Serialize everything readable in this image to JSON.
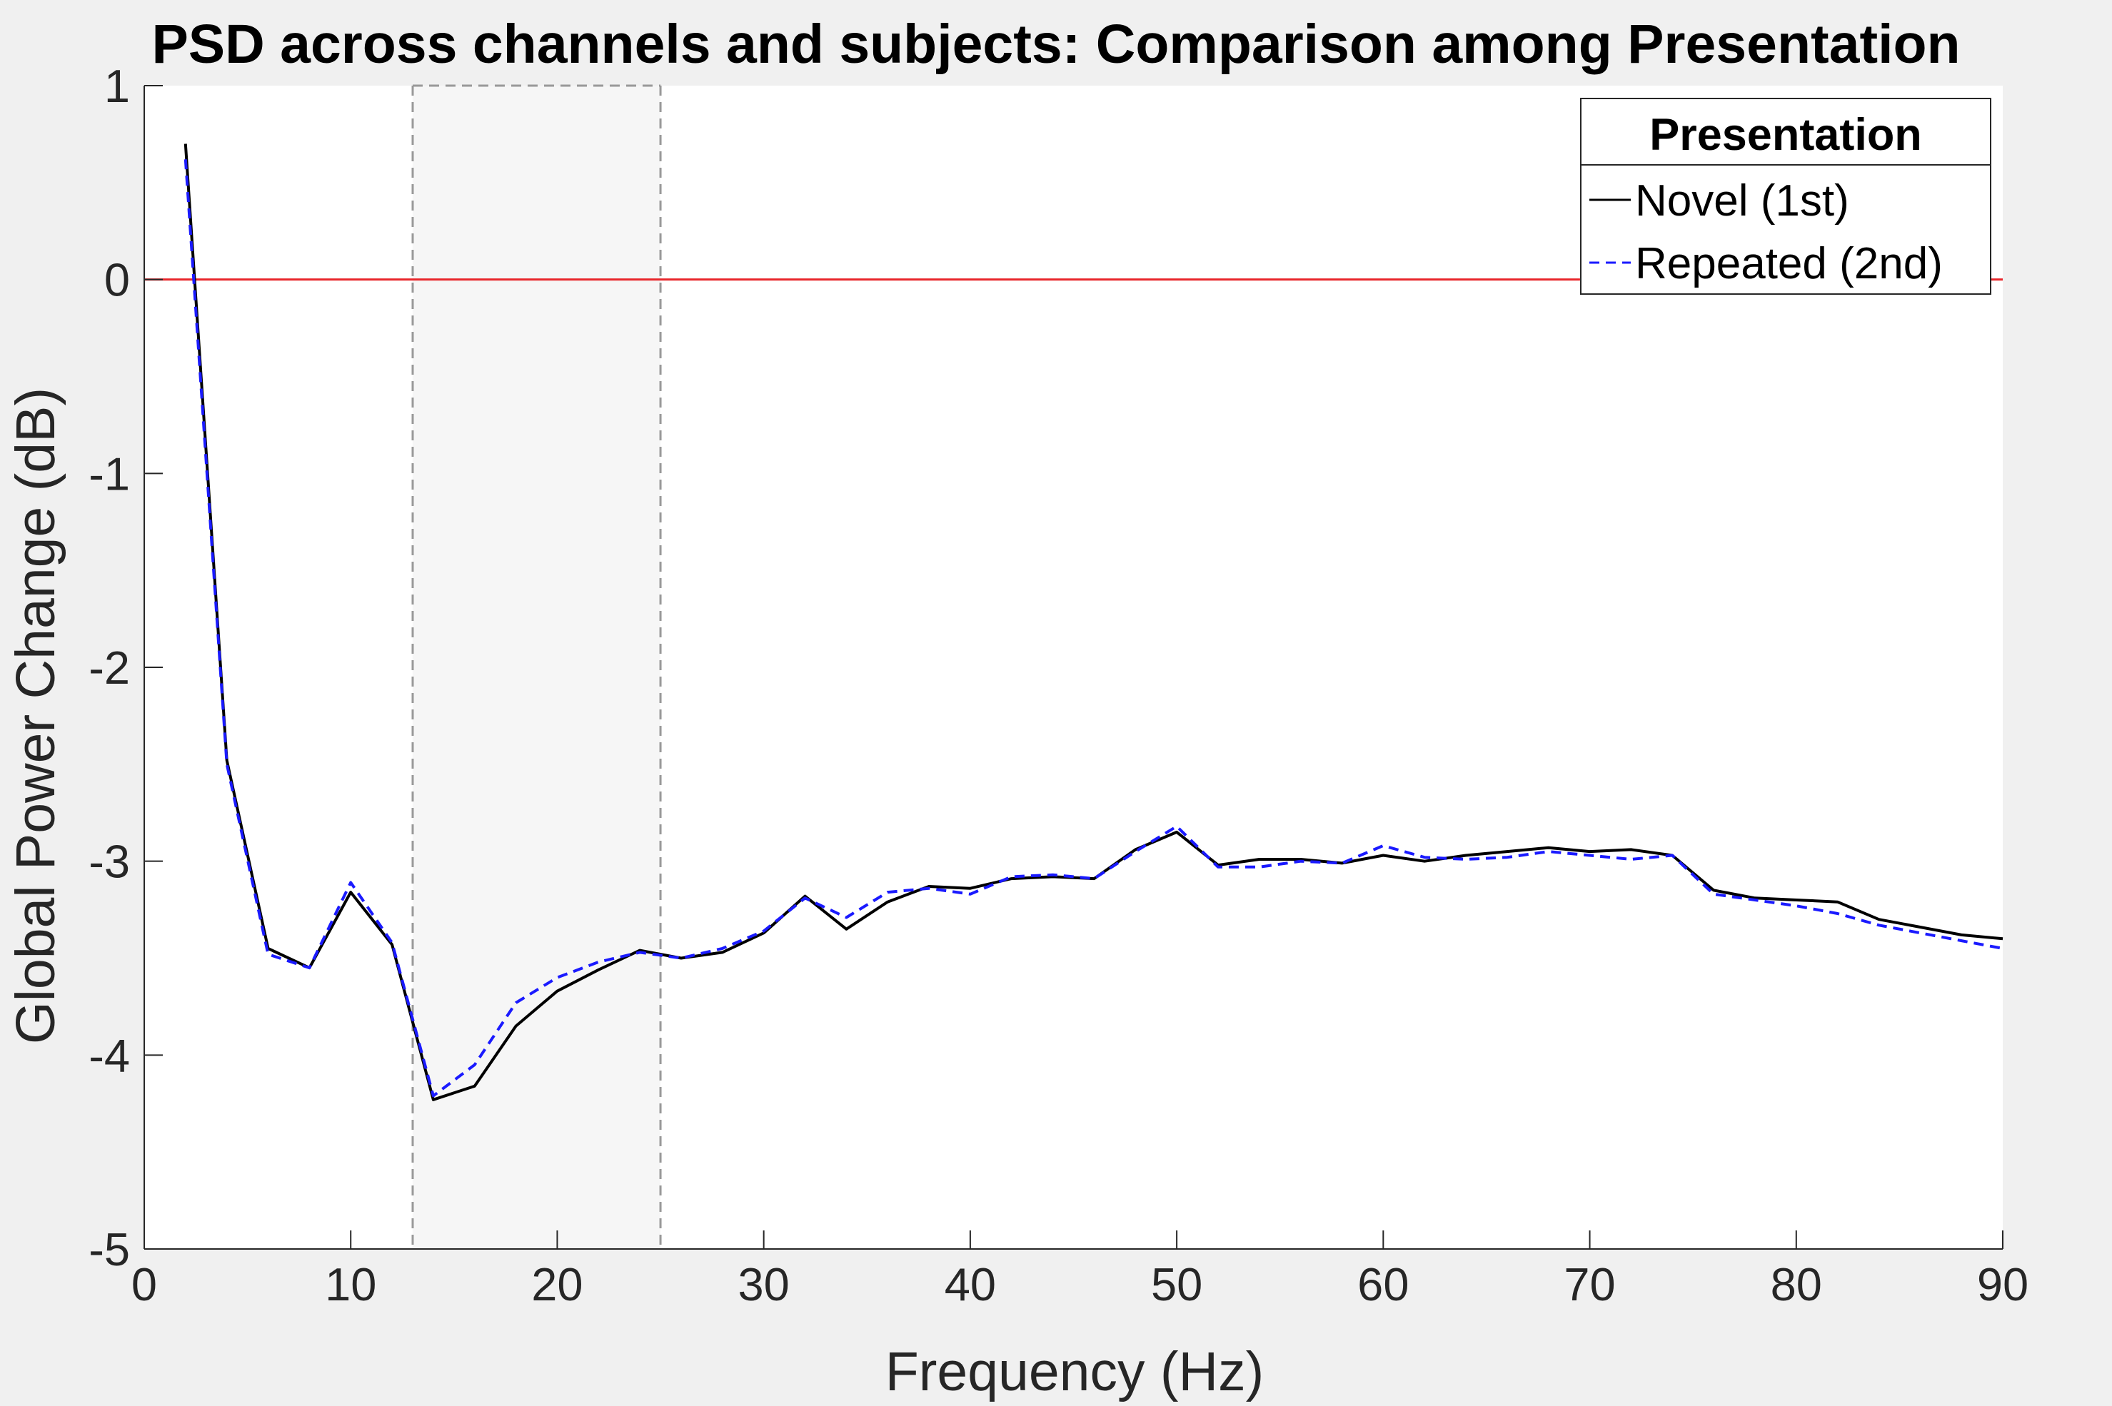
{
  "chart_data": {
    "type": "line",
    "title": "PSD across channels and subjects: Comparison among Presentation",
    "xlabel": "Frequency (Hz)",
    "ylabel": "Global Power Change (dB)",
    "xlim": [
      0,
      90
    ],
    "ylim": [
      -5,
      1
    ],
    "xticks": [
      "0",
      "10",
      "20",
      "30",
      "40",
      "50",
      "60",
      "70",
      "80",
      "90"
    ],
    "yticks": [
      "-5",
      "-4",
      "-3",
      "-2",
      "-1",
      "0",
      "1"
    ],
    "grid": false,
    "reference_line": {
      "y": 0,
      "color": "#e8262b"
    },
    "shaded_band": {
      "x_start": 13,
      "x_end": 25,
      "fill": "#ececec",
      "edge": "#999999"
    },
    "legend": {
      "title": "Presentation",
      "position": "top-right"
    },
    "series": [
      {
        "name": "Novel (1st)",
        "color": "#000000",
        "style": "solid",
        "x": [
          2,
          4,
          6,
          8,
          10,
          12,
          14,
          16,
          18,
          20,
          22,
          24,
          26,
          28,
          30,
          32,
          34,
          36,
          38,
          40,
          42,
          44,
          46,
          48,
          50,
          52,
          54,
          56,
          58,
          60,
          62,
          64,
          66,
          68,
          70,
          72,
          74,
          76,
          78,
          80,
          82,
          84,
          86,
          88,
          90
        ],
        "y": [
          0.7,
          -2.48,
          -3.45,
          -3.55,
          -3.16,
          -3.43,
          -4.23,
          -4.16,
          -3.85,
          -3.67,
          -3.56,
          -3.46,
          -3.5,
          -3.47,
          -3.37,
          -3.18,
          -3.35,
          -3.21,
          -3.13,
          -3.14,
          -3.09,
          -3.08,
          -3.09,
          -2.94,
          -2.85,
          -3.02,
          -2.99,
          -2.99,
          -3.01,
          -2.97,
          -3.0,
          -2.97,
          -2.95,
          -2.93,
          -2.95,
          -2.94,
          -2.97,
          -3.15,
          -3.19,
          -3.2,
          -3.21,
          -3.3,
          -3.34,
          -3.38,
          -3.4
        ]
      },
      {
        "name": "Repeated (2nd)",
        "color": "#1a1aff",
        "style": "dashed",
        "x": [
          2,
          4,
          6,
          8,
          10,
          12,
          14,
          16,
          18,
          20,
          22,
          24,
          26,
          28,
          30,
          32,
          34,
          36,
          38,
          40,
          42,
          44,
          46,
          48,
          50,
          52,
          54,
          56,
          58,
          60,
          62,
          64,
          66,
          68,
          70,
          72,
          74,
          76,
          78,
          80,
          82,
          84,
          86,
          88,
          90
        ],
        "y": [
          0.62,
          -2.5,
          -3.48,
          -3.55,
          -3.11,
          -3.42,
          -4.21,
          -4.05,
          -3.73,
          -3.6,
          -3.52,
          -3.47,
          -3.5,
          -3.45,
          -3.36,
          -3.19,
          -3.29,
          -3.16,
          -3.14,
          -3.17,
          -3.08,
          -3.07,
          -3.09,
          -2.95,
          -2.82,
          -3.03,
          -3.03,
          -3.0,
          -3.01,
          -2.92,
          -2.98,
          -2.99,
          -2.98,
          -2.95,
          -2.97,
          -2.99,
          -2.97,
          -3.17,
          -3.2,
          -3.23,
          -3.27,
          -3.33,
          -3.37,
          -3.41,
          -3.45
        ]
      }
    ]
  }
}
